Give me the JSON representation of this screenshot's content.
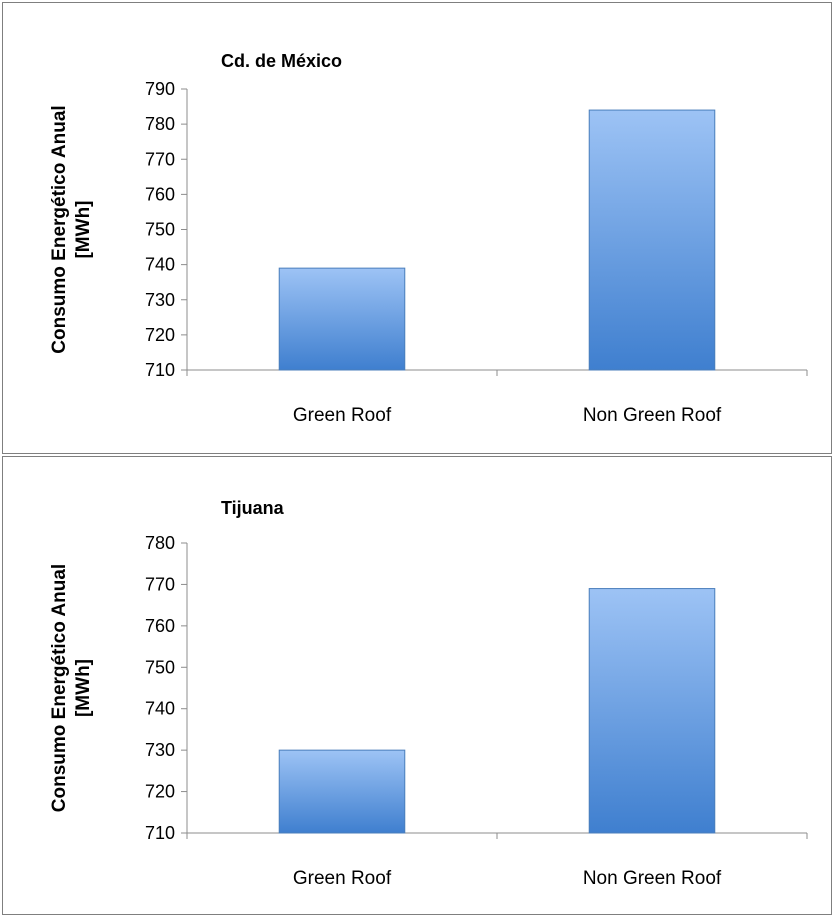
{
  "chart_data": [
    {
      "type": "bar",
      "title": "Cd. de México",
      "ylabel": [
        "Consumo Energético Anual",
        "[MWh]"
      ],
      "categories": [
        "Green Roof",
        "Non Green Roof"
      ],
      "values": [
        739,
        784
      ],
      "ylim": [
        710,
        790
      ],
      "yticks": [
        710,
        720,
        730,
        740,
        750,
        760,
        770,
        780,
        790
      ],
      "grid": false,
      "bar_color_top": "#9dc3f5",
      "bar_color_bottom": "#3f7fcf",
      "bar_border": "#4a7ebb"
    },
    {
      "type": "bar",
      "title": "Tijuana",
      "ylabel": [
        "Consumo Energético Anual",
        "[MWh]"
      ],
      "categories": [
        "Green Roof",
        "Non Green Roof"
      ],
      "values": [
        730,
        769
      ],
      "ylim": [
        710,
        780
      ],
      "yticks": [
        710,
        720,
        730,
        740,
        750,
        760,
        770,
        780
      ],
      "grid": false,
      "bar_color_top": "#9dc3f5",
      "bar_color_bottom": "#3f7fcf",
      "bar_border": "#4a7ebb"
    }
  ]
}
